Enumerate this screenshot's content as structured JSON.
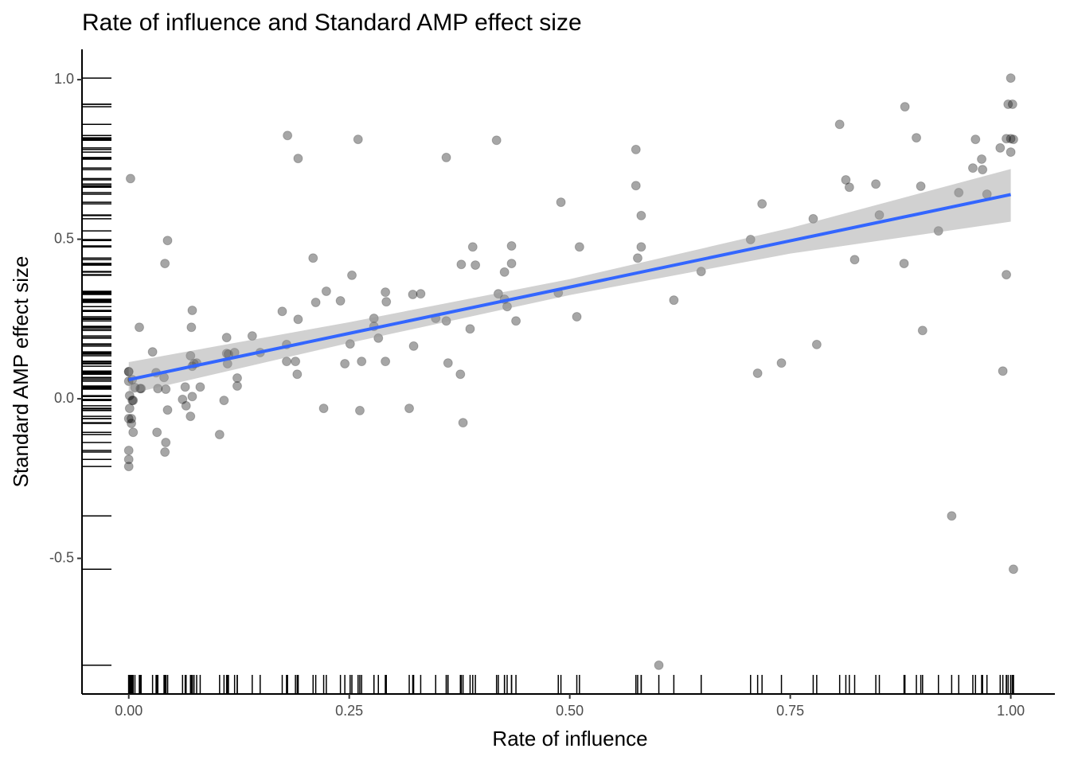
{
  "chart_data": {
    "type": "scatter",
    "title": "Rate of influence and Standard AMP effect size",
    "x_label": "Rate of influence",
    "y_label": "Standard AMP effect size",
    "xlim": [
      -0.053,
      1.05
    ],
    "ylim": [
      -0.925,
      1.095
    ],
    "xticks": [
      {
        "value": 0,
        "label": "0.00"
      },
      {
        "value": 0.25,
        "label": "0.25"
      },
      {
        "value": 0.5,
        "label": "0.50"
      },
      {
        "value": 0.75,
        "label": "0.75"
      },
      {
        "value": 1,
        "label": "1.00"
      }
    ],
    "yticks": [
      -0.5,
      {
        "value": 0,
        "label": "0.0"
      },
      0.5,
      {
        "value": 1,
        "label": "1.0"
      }
    ],
    "rug": true,
    "series": [
      {
        "color": "#000000",
        "x": [
          0.002,
          0.0,
          0.0,
          0.0,
          0.004,
          0.001,
          0.004,
          0.005,
          0.001,
          0.003,
          0.0,
          0.003,
          0.005,
          0.0,
          0.0,
          0.0,
          0.007,
          0.013,
          0.014,
          0.012,
          0.027,
          0.031,
          0.033,
          0.032,
          0.04,
          0.042,
          0.044,
          0.041,
          0.042,
          0.041,
          0.044,
          0.061,
          0.065,
          0.064,
          0.07,
          0.072,
          0.071,
          0.072,
          0.074,
          0.077,
          0.072,
          0.07,
          0.081,
          0.103,
          0.108,
          0.111,
          0.111,
          0.113,
          0.112,
          0.12,
          0.123,
          0.123,
          0.14,
          0.149,
          0.174,
          0.18,
          0.192,
          0.179,
          0.179,
          0.189,
          0.192,
          0.191,
          0.209,
          0.212,
          0.224,
          0.221,
          0.24,
          0.245,
          0.251,
          0.253,
          0.26,
          0.262,
          0.264,
          0.278,
          0.278,
          0.283,
          0.291,
          0.292,
          0.291,
          0.318,
          0.322,
          0.331,
          0.323,
          0.348,
          0.36,
          0.36,
          0.362,
          0.377,
          0.376,
          0.379,
          0.39,
          0.393,
          0.387,
          0.417,
          0.419,
          0.426,
          0.426,
          0.429,
          0.434,
          0.434,
          0.439,
          0.487,
          0.49,
          0.508,
          0.511,
          0.575,
          0.575,
          0.577,
          0.581,
          0.581,
          0.601,
          0.618,
          0.649,
          0.705,
          0.713,
          0.718,
          0.74,
          0.776,
          0.78,
          0.806,
          0.813,
          0.817,
          0.823,
          0.847,
          0.851,
          0.879,
          0.88,
          0.893,
          0.898,
          0.9,
          0.918,
          0.933,
          0.941,
          0.957,
          0.96,
          0.967,
          0.968,
          0.973,
          0.988,
          0.991,
          0.995,
          0.995,
          0.997,
          1.0,
          1.002,
          1.0,
          1.003,
          1.0,
          1.003
        ],
        "y": [
          0.69,
          0.085,
          0.085,
          0.055,
          0.06,
          0.01,
          -0.005,
          -0.005,
          -0.03,
          -0.062,
          -0.062,
          -0.077,
          -0.105,
          -0.162,
          -0.19,
          -0.212,
          0.035,
          0.032,
          0.032,
          0.224,
          0.147,
          0.082,
          0.032,
          -0.105,
          0.067,
          0.03,
          0.496,
          0.424,
          -0.137,
          -0.167,
          -0.035,
          -0.002,
          -0.022,
          0.037,
          0.135,
          0.277,
          0.224,
          0.102,
          0.11,
          0.112,
          0.007,
          -0.055,
          0.037,
          -0.112,
          -0.005,
          0.192,
          0.142,
          0.14,
          0.11,
          0.145,
          0.065,
          0.04,
          0.197,
          0.145,
          0.274,
          0.825,
          0.753,
          0.17,
          0.117,
          0.117,
          0.249,
          0.077,
          0.441,
          0.302,
          0.337,
          -0.03,
          0.307,
          0.11,
          0.172,
          0.387,
          0.813,
          -0.037,
          0.117,
          0.252,
          0.227,
          0.19,
          0.334,
          0.304,
          0.117,
          -0.03,
          0.327,
          0.329,
          0.165,
          0.252,
          0.756,
          0.244,
          0.112,
          0.421,
          0.077,
          -0.075,
          0.476,
          0.419,
          0.219,
          0.81,
          0.329,
          0.397,
          0.312,
          0.289,
          0.479,
          0.424,
          0.244,
          0.332,
          0.616,
          0.257,
          0.476,
          0.781,
          0.668,
          0.441,
          0.574,
          0.476,
          -0.835,
          0.309,
          0.399,
          0.499,
          0.08,
          0.611,
          0.112,
          0.564,
          0.17,
          0.86,
          0.686,
          0.663,
          0.436,
          0.673,
          0.576,
          0.424,
          0.915,
          0.818,
          0.666,
          0.214,
          0.526,
          -0.367,
          0.646,
          0.723,
          0.813,
          0.751,
          0.718,
          0.641,
          0.786,
          0.087,
          0.389,
          0.815,
          0.923,
          1.005,
          0.923,
          0.815,
          0.813,
          0.773,
          -0.534
        ]
      }
    ],
    "fit": {
      "color": "#3366ff",
      "band_color": "#999999",
      "x": [
        0,
        0.25,
        0.5,
        0.75,
        1
      ],
      "y": [
        0.06,
        0.205,
        0.35,
        0.495,
        0.64
      ],
      "lower": [
        0.015,
        0.175,
        0.325,
        0.455,
        0.555
      ],
      "upper": [
        0.115,
        0.24,
        0.375,
        0.535,
        0.72
      ]
    }
  }
}
